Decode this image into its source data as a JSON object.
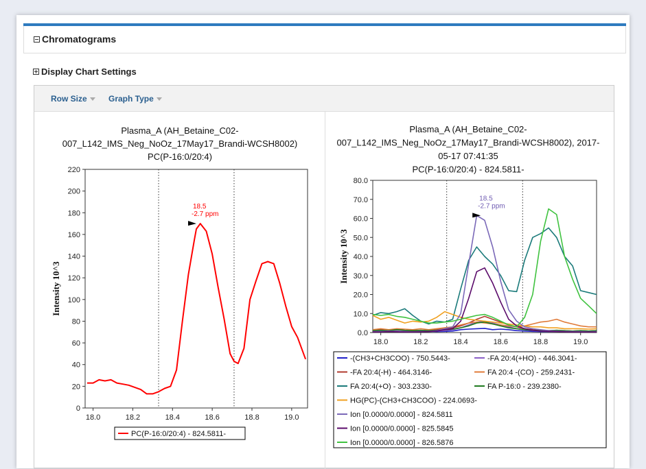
{
  "section": {
    "title": "Chromatograms"
  },
  "settings": {
    "title": "Display Chart Settings"
  },
  "toolbar": {
    "row_size": "Row Size",
    "graph_type": "Graph Type"
  },
  "chart_data": [
    {
      "type": "line",
      "title_lines": [
        "Plasma_A (AH_Betaine_C02-",
        "007_L142_IMS_Neg_NoOz_17May17_Brandi-WCSH8002)",
        "PC(P-16:0/20:4)"
      ],
      "ylabel": "Intensity 10^3",
      "xlim": [
        17.96,
        19.08
      ],
      "ylim": [
        0,
        220
      ],
      "xticks": [
        "18.0",
        "18.2",
        "18.4",
        "18.6",
        "18.8",
        "19.0"
      ],
      "yticks": [
        "0",
        "20",
        "40",
        "60",
        "80",
        "100",
        "120",
        "140",
        "160",
        "180",
        "200",
        "220"
      ],
      "vlines": [
        18.33,
        18.71
      ],
      "annotation": {
        "x": 18.52,
        "y": 170,
        "text1": "18.5",
        "text2": "-2.7 ppm",
        "color": "#ff0000"
      },
      "series": [
        {
          "name": "PC(P-16:0/20:4) - 824.5811-",
          "color": "#ff0000",
          "x": [
            17.97,
            18.0,
            18.03,
            18.06,
            18.09,
            18.12,
            18.15,
            18.18,
            18.21,
            18.24,
            18.27,
            18.3,
            18.33,
            18.36,
            18.39,
            18.42,
            18.45,
            18.48,
            18.51,
            18.52,
            18.54,
            18.57,
            18.6,
            18.63,
            18.66,
            18.69,
            18.71,
            18.73,
            18.76,
            18.79,
            18.82,
            18.85,
            18.88,
            18.91,
            18.94,
            18.97,
            19.0,
            19.03,
            19.07
          ],
          "values": [
            23,
            23,
            26,
            25,
            26,
            23,
            22,
            21,
            19,
            17,
            13,
            13,
            15,
            18,
            20,
            35,
            80,
            123,
            155,
            165,
            170,
            163,
            142,
            111,
            82,
            50,
            43,
            41,
            55,
            100,
            117,
            133,
            135,
            133,
            115,
            94,
            75,
            65,
            45
          ]
        }
      ]
    },
    {
      "type": "line",
      "title_lines": [
        "Plasma_A (AH_Betaine_C02-",
        "007_L142_IMS_Neg_NoOz_17May17_Brandi-WCSH8002), 2017-",
        "05-17 07:41:35",
        "PC(P-16:0/20:4) - 824.5811-"
      ],
      "ylabel": "Intensity 10^3",
      "xlim": [
        17.96,
        19.08
      ],
      "ylim": [
        0,
        80
      ],
      "xticks": [
        "18.0",
        "18.2",
        "18.4",
        "18.6",
        "18.8",
        "19.0"
      ],
      "yticks": [
        "0.0",
        "10.0",
        "20.0",
        "30.0",
        "40.0",
        "50.0",
        "60.0",
        "70.0",
        "80.0"
      ],
      "vlines": [
        18.33,
        18.71
      ],
      "annotation": {
        "x": 18.5,
        "y": 61.5,
        "text1": "18.5",
        "text2": "-2.7 ppm",
        "color": "#6f5bb2"
      },
      "x": [
        17.96,
        18.0,
        18.04,
        18.08,
        18.12,
        18.16,
        18.2,
        18.24,
        18.28,
        18.32,
        18.36,
        18.4,
        18.44,
        18.48,
        18.52,
        18.56,
        18.6,
        18.64,
        18.68,
        18.72,
        18.76,
        18.8,
        18.84,
        18.88,
        18.92,
        18.96,
        19.0,
        19.04,
        19.08
      ],
      "series": [
        {
          "name": "-(CH3+CH3COO) - 750.5443-",
          "color": "#1f1fc8",
          "values": [
            0.5,
            0.5,
            0.8,
            0.6,
            0.5,
            0.4,
            0.5,
            0.6,
            0.5,
            0.6,
            0.8,
            1.5,
            1.8,
            2.0,
            2.2,
            1.5,
            1.8,
            1.5,
            1.0,
            0.8,
            0.6,
            0.5,
            0.5,
            0.6,
            0.5,
            0.4,
            0.5,
            0.4,
            0.5
          ]
        },
        {
          "name": "-FA 20:4(+HO) - 446.3041-",
          "color": "#8a5fc7",
          "values": [
            0.5,
            0.8,
            0.6,
            0.8,
            0.6,
            0.5,
            0.6,
            0.5,
            0.8,
            1.0,
            1.5,
            2.5,
            4.0,
            5.5,
            6.0,
            5.0,
            4.0,
            3.0,
            2.0,
            1.5,
            1.0,
            0.8,
            0.6,
            0.5,
            0.6,
            0.5,
            0.4,
            0.5,
            0.5
          ]
        },
        {
          "name": "-FA 20:4(-H) - 464.3146-",
          "color": "#b03a2e",
          "values": [
            1.0,
            1.5,
            1.0,
            1.5,
            1.2,
            1.0,
            1.2,
            1.0,
            1.5,
            2.0,
            2.5,
            3.5,
            5.0,
            7.0,
            8.5,
            7.0,
            5.5,
            4.0,
            3.0,
            2.0,
            1.5,
            1.0,
            1.0,
            1.2,
            1.0,
            0.8,
            1.0,
            0.8,
            1.0
          ]
        },
        {
          "name": "FA 20:4 -(CO) - 259.2431-",
          "color": "#e07b39",
          "values": [
            1.5,
            2.0,
            1.5,
            2.0,
            1.8,
            1.5,
            2.0,
            1.5,
            2.0,
            2.5,
            3.0,
            4.0,
            5.0,
            5.5,
            5.0,
            4.5,
            4.0,
            3.5,
            3.0,
            3.5,
            4.5,
            5.5,
            6.0,
            7.0,
            5.5,
            4.5,
            3.5,
            3.0,
            3.0
          ]
        },
        {
          "name": "FA 20:4(+O) - 303.2330-",
          "color": "#1a7a7a",
          "values": [
            9.0,
            10.5,
            10.0,
            11.0,
            12.5,
            9.0,
            6.0,
            4.5,
            6.0,
            5.5,
            7.0,
            23.0,
            38.0,
            45.0,
            40.0,
            36.0,
            30.0,
            22.0,
            21.5,
            38.0,
            50.0,
            52.0,
            55.0,
            50.0,
            40.0,
            35.0,
            22.0,
            21.0,
            20.0
          ]
        },
        {
          "name": "FA P-16:0 - 239.2380-",
          "color": "#1f7a1f",
          "values": [
            1.0,
            1.2,
            1.0,
            1.5,
            1.2,
            1.0,
            1.2,
            1.0,
            1.2,
            1.5,
            1.8,
            2.5,
            3.5,
            5.0,
            5.5,
            4.5,
            3.5,
            2.5,
            2.0,
            1.5,
            1.2,
            1.0,
            1.0,
            1.2,
            1.0,
            0.8,
            1.0,
            0.8,
            1.0
          ]
        },
        {
          "name": "HG(PC)-(CH3+CH3COO) - 224.0693-",
          "color": "#f0a020",
          "values": [
            9.0,
            7.0,
            8.0,
            6.5,
            5.0,
            6.0,
            5.5,
            6.0,
            8.0,
            11.0,
            9.5,
            8.0,
            7.0,
            6.5,
            6.0,
            5.5,
            5.0,
            4.5,
            4.0,
            3.5,
            3.0,
            3.0,
            2.5,
            2.5,
            2.0,
            2.0,
            2.0,
            1.8,
            2.0
          ]
        },
        {
          "name": "Ion [0.0000/0.0000] - 824.5811",
          "color": "#7a68b8",
          "values": [
            0.5,
            0.5,
            0.8,
            0.6,
            0.5,
            0.4,
            0.5,
            0.6,
            1.0,
            2.0,
            3.0,
            10.0,
            36.0,
            61.5,
            59.0,
            45.0,
            27.0,
            12.0,
            6.0,
            3.0,
            2.0,
            1.5,
            1.0,
            0.8,
            0.6,
            0.5,
            0.5,
            0.4,
            0.5
          ]
        },
        {
          "name": "Ion [0.0000/0.0000] - 825.5845",
          "color": "#5a0a6a",
          "values": [
            0.3,
            0.3,
            0.5,
            0.4,
            0.3,
            0.3,
            0.4,
            0.5,
            0.8,
            1.5,
            2.0,
            6.0,
            18.0,
            32.0,
            34.0,
            26.0,
            16.0,
            7.0,
            3.5,
            2.0,
            1.2,
            0.8,
            0.6,
            0.5,
            0.4,
            0.3,
            0.3,
            0.3,
            0.3
          ]
        },
        {
          "name": "Ion [0.0000/0.0000] - 826.5876",
          "color": "#3fc23f",
          "values": [
            9.5,
            9.0,
            9.5,
            8.5,
            8.0,
            7.0,
            6.0,
            5.0,
            5.0,
            5.5,
            6.0,
            7.0,
            8.0,
            9.0,
            9.5,
            8.0,
            6.0,
            4.0,
            3.0,
            8.0,
            20.0,
            48.0,
            65.0,
            62.0,
            40.0,
            28.0,
            18.0,
            14.0,
            10.0
          ]
        }
      ]
    }
  ]
}
